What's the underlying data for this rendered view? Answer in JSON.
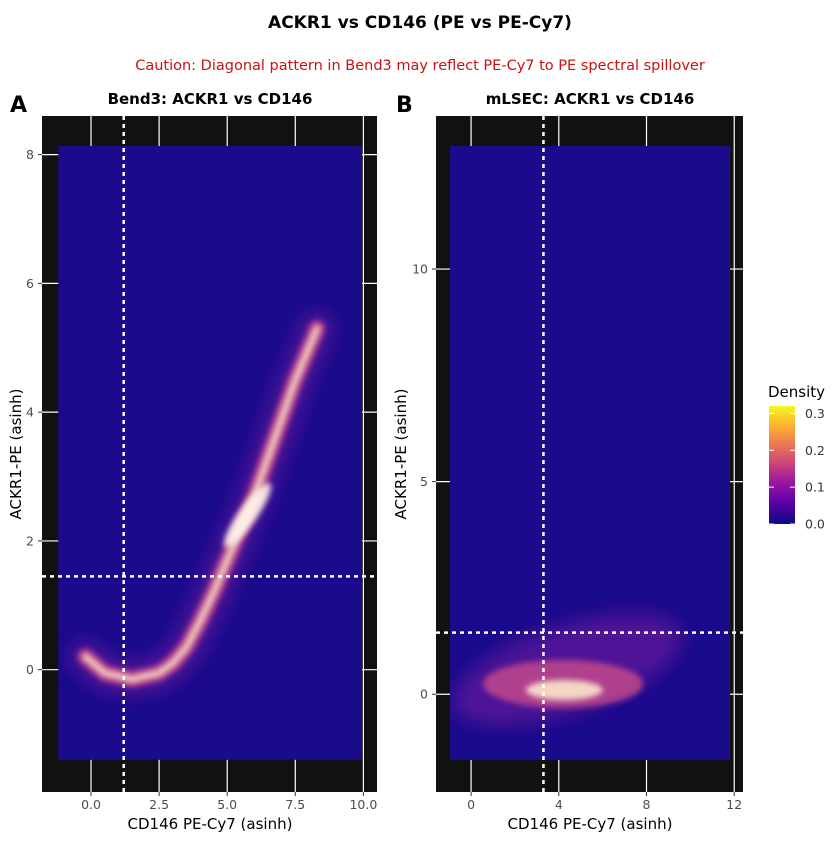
{
  "title": "ACKR1 vs CD146 (PE vs PE-Cy7)",
  "subtitle": "Caution: Diagonal pattern in Bend3 may reflect PE-Cy7 to PE spectral spillover",
  "colors": {
    "subtitle": "#cc1111",
    "panel_bg": "#111111",
    "plot_fill": "#1a0a8c",
    "gridline": "#ffffff",
    "threshold_line": "#ffffff",
    "density_scale": [
      "#0d0887",
      "#5c01a6",
      "#9c179e",
      "#cc4778",
      "#ed7953",
      "#fdb42f",
      "#f0f921"
    ]
  },
  "legend": {
    "title": "Density",
    "ticks": [
      "0.3",
      "0.2",
      "0.1",
      "0.0"
    ],
    "position": "right"
  },
  "chart_data": [
    {
      "type": "heatmap",
      "panel_label": "A",
      "title": "Bend3: ACKR1 vs CD146",
      "xlabel": "CD146 PE-Cy7 (asinh)",
      "ylabel": "ACKR1-PE (asinh)",
      "xlim": [
        -1.8,
        10.5
      ],
      "ylim": [
        -1.9,
        8.6
      ],
      "data_extent": {
        "x": [
          -1.2,
          10.3
        ],
        "y": [
          -1.4,
          8.2
        ]
      },
      "xticks": [
        0,
        2.5,
        5,
        7.5,
        10
      ],
      "xtick_labels": [
        "0.0",
        "2.5",
        "5.0",
        "7.5",
        "10.0"
      ],
      "yticks": [
        0,
        2,
        4,
        6,
        8
      ],
      "ytick_labels": [
        "0",
        "2",
        "4",
        "6",
        "8"
      ],
      "vline_x": 1.2,
      "hline_y": 1.45,
      "density_ridge": [
        [
          -0.2,
          0.2
        ],
        [
          0.5,
          -0.05
        ],
        [
          1.5,
          -0.15
        ],
        [
          2.5,
          -0.05
        ],
        [
          3.0,
          0.1
        ],
        [
          3.5,
          0.35
        ],
        [
          4.0,
          0.75
        ],
        [
          4.5,
          1.2
        ],
        [
          5.0,
          1.7
        ],
        [
          5.5,
          2.2
        ],
        [
          6.0,
          2.7
        ],
        [
          6.5,
          3.3
        ],
        [
          7.0,
          3.9
        ],
        [
          7.5,
          4.5
        ],
        [
          8.0,
          5.0
        ],
        [
          8.3,
          5.3
        ]
      ],
      "peak_region": {
        "x": [
          5.0,
          6.5
        ],
        "y": [
          1.8,
          3.0
        ]
      }
    },
    {
      "type": "heatmap",
      "panel_label": "B",
      "title": "mLSEC: ACKR1 vs CD146",
      "xlabel": "CD146 PE-Cy7 (asinh)",
      "ylabel": "ACKR1-PE (asinh)",
      "xlim": [
        -1.6,
        12.4
      ],
      "ylim": [
        -2.3,
        13.6
      ],
      "data_extent": {
        "x": [
          -1.0,
          12.0
        ],
        "y": [
          -1.6,
          13.0
        ]
      },
      "xticks": [
        0,
        4,
        8,
        12
      ],
      "xtick_labels": [
        "0",
        "4",
        "8",
        "12"
      ],
      "yticks": [
        0,
        5,
        10
      ],
      "ytick_labels": [
        "0",
        "5",
        "10"
      ],
      "vline_x": 3.3,
      "hline_y": 1.45,
      "density_center": [
        4.2,
        0.1
      ],
      "peak_region": {
        "x": [
          2.5,
          6.0
        ],
        "y": [
          -0.3,
          0.5
        ]
      }
    }
  ]
}
